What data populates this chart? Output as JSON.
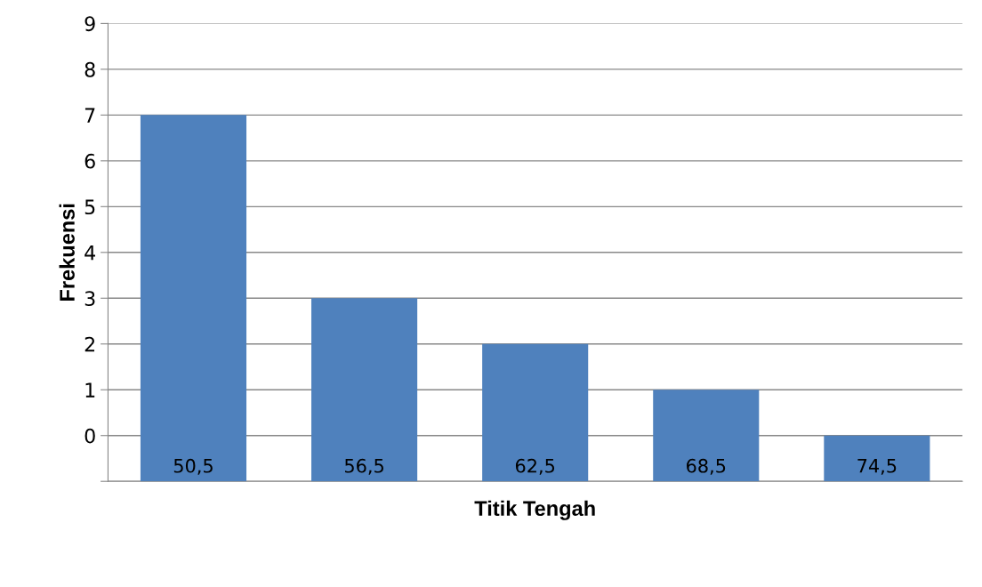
{
  "chart_data": {
    "type": "bar",
    "xlabel": "Titik Tengah",
    "ylabel": "Frekuensi",
    "categories": [
      "50,5",
      "56,5",
      "62,5",
      "68,5",
      "74,5"
    ],
    "values": [
      8,
      4,
      3,
      2,
      1
    ],
    "base": [
      -1,
      -1,
      -1,
      -1,
      -1
    ],
    "color": "#4f81bd",
    "ylim": [
      -1,
      9
    ],
    "yticks": [
      {
        "value": -1,
        "label": null
      },
      0,
      1,
      2,
      3,
      4,
      5,
      6,
      7,
      8,
      9
    ],
    "grid": "y"
  }
}
